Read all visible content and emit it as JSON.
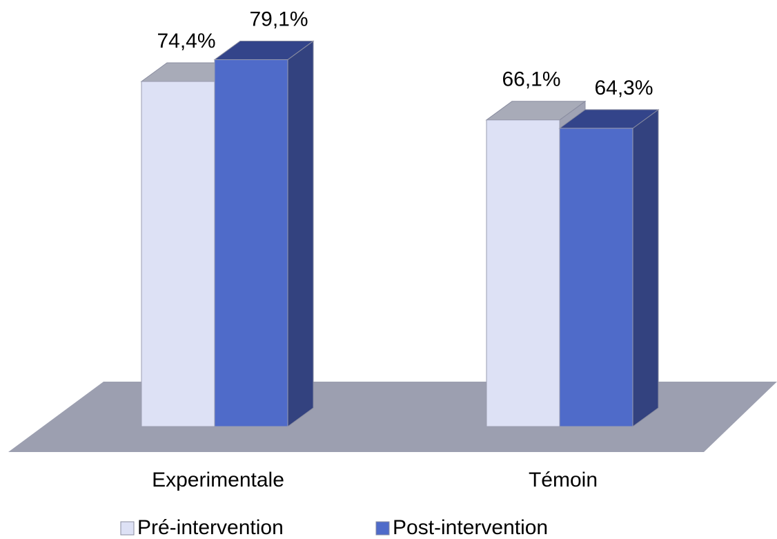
{
  "chart_data": {
    "type": "bar3d",
    "categories": [
      "Experimentale",
      "Témoin"
    ],
    "series": [
      {
        "name": "Pré-intervention",
        "color": "#dde1f5",
        "values": [
          74.4,
          66.1
        ],
        "value_labels": [
          "74,4%",
          "66,1%"
        ]
      },
      {
        "name": "Post-intervention",
        "color": "#4f6bc9",
        "values": [
          79.1,
          64.3
        ],
        "value_labels": [
          "79,1%",
          "64,3%"
        ]
      }
    ]
  }
}
